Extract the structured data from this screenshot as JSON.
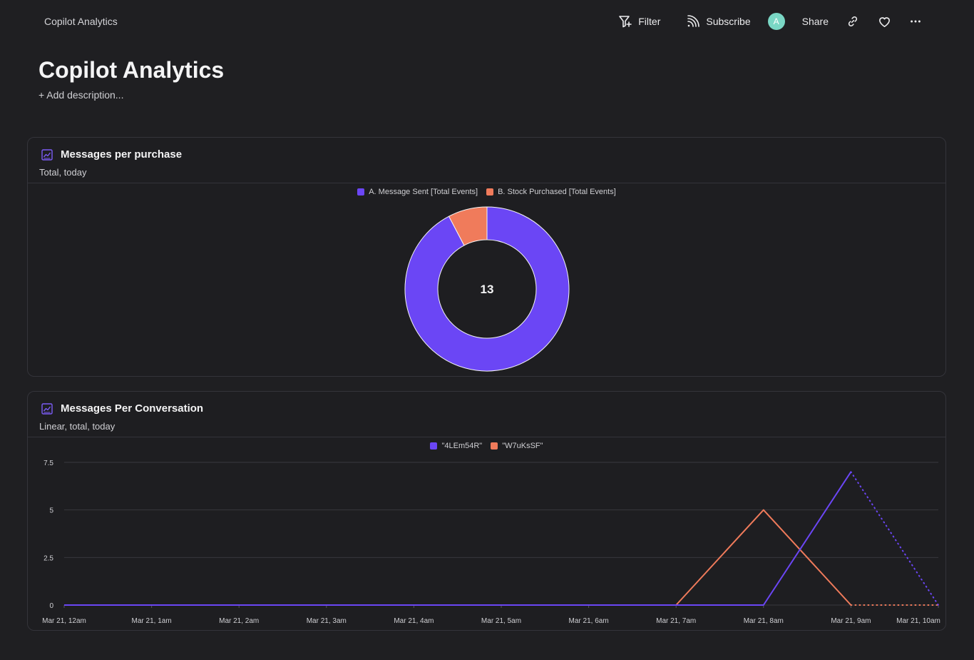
{
  "header": {
    "breadcrumb": "Copilot Analytics",
    "filter_label": "Filter",
    "subscribe_label": "Subscribe",
    "avatar_initial": "A",
    "share_label": "Share"
  },
  "page": {
    "title": "Copilot Analytics",
    "add_description": "+ Add description..."
  },
  "colors": {
    "series_a": "#6b46f5",
    "series_b": "#f07b5b",
    "avatar": "#7ad7c5"
  },
  "cards": [
    {
      "title": "Messages per purchase",
      "subtitle": "Total, today",
      "chart_data": {
        "type": "pie",
        "donut": true,
        "center_label": "13",
        "legend": [
          "A. Message Sent [Total Events]",
          "B. Stock Purchased [Total Events]"
        ],
        "values": [
          12,
          1
        ]
      }
    },
    {
      "title": "Messages Per Conversation",
      "subtitle": "Linear, total, today",
      "chart_data": {
        "type": "line",
        "x": [
          "Mar 21, 12am",
          "Mar 21, 1am",
          "Mar 21, 2am",
          "Mar 21, 3am",
          "Mar 21, 4am",
          "Mar 21, 5am",
          "Mar 21, 6am",
          "Mar 21, 7am",
          "Mar 21, 8am",
          "Mar 21, 9am",
          "Mar 21, 10am"
        ],
        "y_ticks": [
          "0",
          "2.5",
          "5",
          "7.5"
        ],
        "ylim": [
          0,
          7.5
        ],
        "series": [
          {
            "name": "\"4LEm54R\"",
            "values": [
              0,
              0,
              0,
              0,
              0,
              0,
              0,
              0,
              0,
              7,
              0
            ],
            "partial_last": true
          },
          {
            "name": "\"W7uKsSF\"",
            "values": [
              0,
              0,
              0,
              0,
              0,
              0,
              0,
              0,
              5,
              0,
              0
            ],
            "partial_last": true
          }
        ]
      }
    }
  ]
}
